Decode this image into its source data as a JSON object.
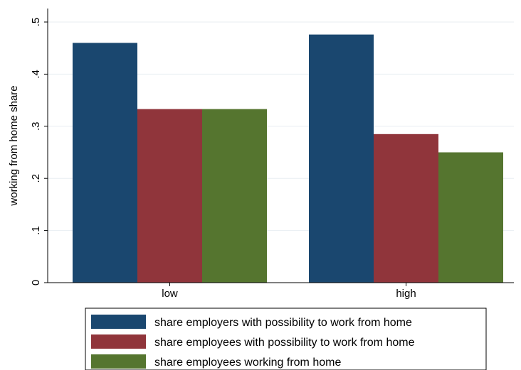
{
  "chart_data": {
    "type": "bar",
    "title": "",
    "xlabel": "",
    "ylabel": "working from home share",
    "categories": [
      "low",
      "high"
    ],
    "ylim": [
      0,
      0.5
    ],
    "yticks": [
      0,
      0.1,
      0.2,
      0.3,
      0.4,
      0.5
    ],
    "ytick_labels": [
      "0",
      ".1",
      ".2",
      ".3",
      ".4",
      ".5"
    ],
    "grid": true,
    "legend_position": "bottom",
    "series": [
      {
        "name": "share employers with possibility to work from home",
        "values": [
          0.46,
          0.476
        ],
        "color": "#1a476f"
      },
      {
        "name": "share employees with possibility to work from home",
        "values": [
          0.333,
          0.285
        ],
        "color": "#90353b"
      },
      {
        "name": "share employees working from home",
        "values": [
          0.333,
          0.25
        ],
        "color": "#55752f"
      }
    ]
  }
}
